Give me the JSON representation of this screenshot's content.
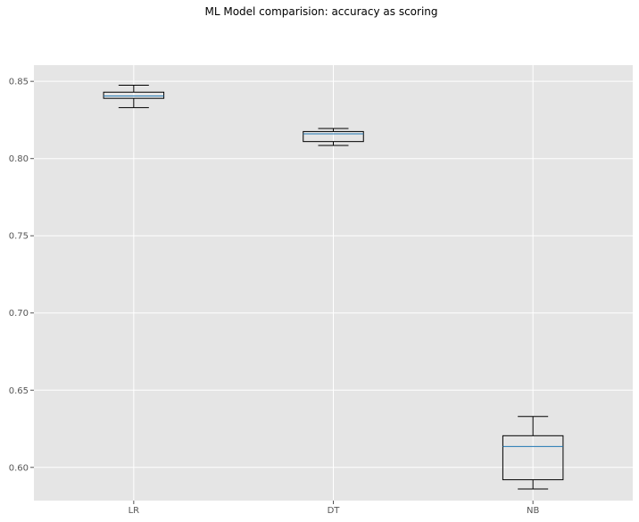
{
  "chart_data": {
    "type": "box",
    "title": "ML Model comparision: accuracy as scoring",
    "xlabel": "",
    "ylabel": "",
    "categories": [
      "LR",
      "DT",
      "NB"
    ],
    "boxes": [
      {
        "label": "LR",
        "whisker_low": 0.833,
        "q1": 0.839,
        "median": 0.8405,
        "q3": 0.843,
        "whisker_high": 0.8475
      },
      {
        "label": "DT",
        "whisker_low": 0.8085,
        "q1": 0.811,
        "median": 0.816,
        "q3": 0.8175,
        "whisker_high": 0.8195
      },
      {
        "label": "NB",
        "whisker_low": 0.586,
        "q1": 0.592,
        "median": 0.6135,
        "q3": 0.6205,
        "whisker_high": 0.633
      }
    ],
    "yticks": [
      "0.60",
      "0.65",
      "0.70",
      "0.75",
      "0.80",
      "0.85"
    ],
    "ylim": [
      0.5785,
      0.8605
    ],
    "grid": true,
    "colors": {
      "plot_background": "#e5e5e5",
      "grid": "#ffffff",
      "box": "#000000",
      "median": "#1f77b4"
    }
  }
}
